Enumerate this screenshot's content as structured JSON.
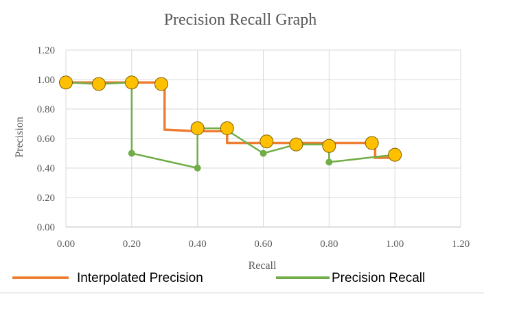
{
  "chart_data": {
    "type": "line",
    "title": "Precision Recall Graph",
    "xlabel": "Recall",
    "ylabel": "Precision",
    "xlim": [
      0,
      1.2
    ],
    "ylim": [
      0,
      1.2
    ],
    "x_ticks": [
      "0.00",
      "0.20",
      "0.40",
      "0.60",
      "0.80",
      "1.00",
      "1.20"
    ],
    "y_ticks": [
      "0.00",
      "0.20",
      "0.40",
      "0.60",
      "0.80",
      "1.00",
      "1.20"
    ],
    "grid": true,
    "legend_position": "bottom",
    "series": [
      {
        "name": "Interpolated Precision",
        "color": "#ED7D31",
        "style": "step",
        "points": [
          {
            "x": 0.0,
            "y": 0.98
          },
          {
            "x": 0.3,
            "y": 0.98
          },
          {
            "x": 0.3,
            "y": 0.66
          },
          {
            "x": 0.4,
            "y": 0.65
          },
          {
            "x": 0.49,
            "y": 0.65
          },
          {
            "x": 0.49,
            "y": 0.57
          },
          {
            "x": 0.94,
            "y": 0.57
          },
          {
            "x": 0.94,
            "y": 0.47
          },
          {
            "x": 1.0,
            "y": 0.47
          }
        ]
      },
      {
        "name": "Precision Recall",
        "color": "#70AD47",
        "style": "line",
        "points": [
          {
            "x": 0.0,
            "y": 0.98
          },
          {
            "x": 0.1,
            "y": 0.97
          },
          {
            "x": 0.2,
            "y": 0.98
          },
          {
            "x": 0.2,
            "y": 0.5
          },
          {
            "x": 0.4,
            "y": 0.4
          },
          {
            "x": 0.4,
            "y": 0.67
          },
          {
            "x": 0.48,
            "y": 0.67
          },
          {
            "x": 0.6,
            "y": 0.5
          },
          {
            "x": 0.7,
            "y": 0.56
          },
          {
            "x": 0.8,
            "y": 0.56
          },
          {
            "x": 0.8,
            "y": 0.44
          },
          {
            "x": 1.0,
            "y": 0.49
          }
        ],
        "small_markers": [
          {
            "x": 0.2,
            "y": 0.5
          },
          {
            "x": 0.4,
            "y": 0.4
          },
          {
            "x": 0.6,
            "y": 0.5
          },
          {
            "x": 0.8,
            "y": 0.44
          }
        ]
      }
    ],
    "markers": {
      "color": "#FFC000",
      "stroke": "#7F6000",
      "points": [
        {
          "x": 0.0,
          "y": 0.98
        },
        {
          "x": 0.1,
          "y": 0.97
        },
        {
          "x": 0.2,
          "y": 0.98
        },
        {
          "x": 0.29,
          "y": 0.97
        },
        {
          "x": 0.4,
          "y": 0.67
        },
        {
          "x": 0.49,
          "y": 0.67
        },
        {
          "x": 0.61,
          "y": 0.58
        },
        {
          "x": 0.7,
          "y": 0.56
        },
        {
          "x": 0.8,
          "y": 0.55
        },
        {
          "x": 0.93,
          "y": 0.57
        },
        {
          "x": 1.0,
          "y": 0.49
        }
      ]
    }
  }
}
